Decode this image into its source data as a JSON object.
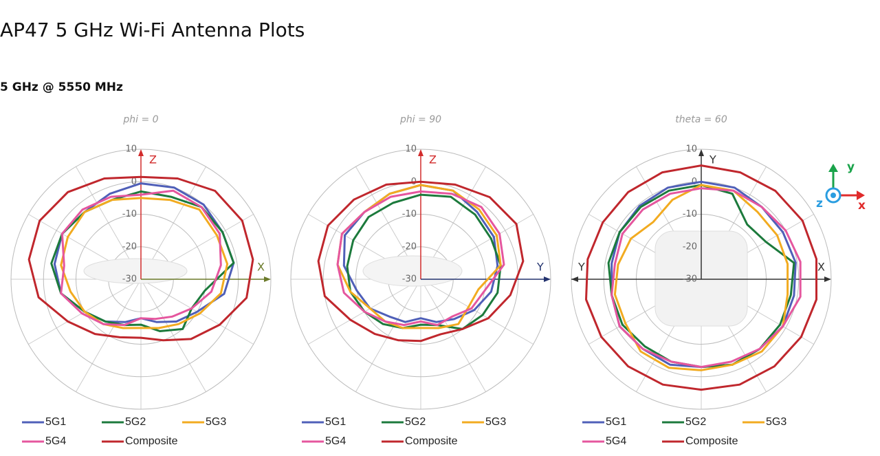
{
  "header": {
    "title": "AP47 5 GHz Wi-Fi Antenna Plots",
    "subtitle": "5 GHz @ 5550 MHz"
  },
  "orientation_icon": {
    "labels": [
      "y",
      "z",
      "x"
    ]
  },
  "chart_data": [
    {
      "type": "polar",
      "title": "phi = 0",
      "theta": [
        0,
        20,
        40,
        60,
        80,
        100,
        120,
        140,
        160,
        180,
        200,
        220,
        240,
        260,
        280,
        300,
        320,
        340
      ],
      "rlim": [
        -30,
        10
      ],
      "rticks": [
        10,
        0,
        -10,
        -20,
        -30
      ],
      "up_axis": {
        "label": "Z",
        "color": "#d22b2b"
      },
      "right_axis": {
        "label": "X",
        "color": "#6b7a2a"
      },
      "series": [
        {
          "name": "5G1",
          "color": "#4f5fb8",
          "values": [
            -0.5,
            0,
            0,
            -1,
            -1,
            -4,
            -10,
            -13,
            -16,
            -18,
            -16,
            -13,
            -10,
            -5,
            -3,
            -2,
            -3,
            -2
          ]
        },
        {
          "name": "5G2",
          "color": "#1c7a3c",
          "values": [
            -3,
            -3,
            -1,
            -1,
            -1,
            -10,
            -12,
            -10,
            -13,
            -16,
            -15,
            -13,
            -10,
            -5,
            -2,
            -2,
            -3,
            -4
          ]
        },
        {
          "name": "5G3",
          "color": "#f2ab20",
          "values": [
            -5,
            -4,
            -2,
            -3,
            -3,
            -5,
            -9,
            -12,
            -14,
            -15,
            -14,
            -12,
            -10,
            -8,
            -5,
            -4,
            -3,
            -4
          ]
        },
        {
          "name": "5G4",
          "color": "#e5569e",
          "values": [
            -4,
            -1,
            -1,
            -2,
            -5,
            -8,
            -12,
            -15,
            -17,
            -18,
            -15,
            -12,
            -9,
            -5,
            -6,
            -2,
            -2,
            -3
          ]
        },
        {
          "name": "Composite",
          "color": "#c0272d",
          "values": [
            1.5,
            3,
            5.5,
            6,
            5,
            3,
            -2,
            -6,
            -10,
            -12,
            -11,
            -8,
            -4,
            2,
            5,
            6,
            5,
            3
          ]
        }
      ]
    },
    {
      "type": "polar",
      "title": "phi = 90",
      "theta": [
        0,
        20,
        40,
        60,
        80,
        100,
        120,
        140,
        160,
        180,
        200,
        220,
        240,
        260,
        280,
        300,
        320,
        340
      ],
      "rlim": [
        -30,
        10
      ],
      "rticks": [
        10,
        0,
        -10,
        -20,
        -30
      ],
      "up_axis": {
        "label": "Z",
        "color": "#d22b2b"
      },
      "right_axis": {
        "label": "Y",
        "color": "#23336e"
      },
      "series": [
        {
          "name": "5G1",
          "color": "#4f5fb8",
          "values": [
            -1,
            -1,
            -3,
            -4,
            -6,
            -8,
            -11,
            -14,
            -16,
            -18,
            -16,
            -15,
            -12,
            -10,
            -6,
            -3,
            -3,
            -2
          ]
        },
        {
          "name": "5G2",
          "color": "#1c7a3c",
          "values": [
            -4,
            -3,
            -4,
            -5,
            -5,
            -6,
            -8,
            -10,
            -15,
            -16,
            -14,
            -12,
            -10,
            -8,
            -7,
            -6,
            -5,
            -5
          ]
        },
        {
          "name": "5G3",
          "color": "#f2ab20",
          "values": [
            -1,
            -1,
            -2,
            -3,
            -5,
            -12,
            -13,
            -12,
            -14,
            -15,
            -14,
            -13,
            -12,
            -8,
            -4,
            -2,
            -3,
            -2
          ]
        },
        {
          "name": "5G4",
          "color": "#e5569e",
          "values": [
            -3,
            -2,
            -1,
            -2,
            -4,
            -10,
            -12,
            -15,
            -15,
            -17,
            -15,
            -13,
            -10,
            -6,
            -4,
            -2,
            -3,
            -3
          ]
        },
        {
          "name": "Composite",
          "color": "#c0272d",
          "values": [
            0,
            1,
            3,
            4,
            2,
            -2,
            -6,
            -10,
            -12,
            -11,
            -10,
            -8,
            -5,
            0,
            2,
            3,
            2,
            1
          ]
        }
      ]
    },
    {
      "type": "polar",
      "title": "theta = 60",
      "theta": [
        0,
        20,
        40,
        60,
        80,
        100,
        120,
        140,
        160,
        180,
        200,
        220,
        240,
        260,
        280,
        300,
        320,
        340
      ],
      "rlim": [
        -30,
        10
      ],
      "rticks": [
        10,
        0,
        -10,
        -20,
        -30
      ],
      "up_axis": {
        "label": "Y",
        "color": "#333333"
      },
      "right_axis": {
        "label": "X",
        "color": "#333333"
      },
      "left_axis": {
        "label": "Y",
        "color": "#333333"
      },
      "series": [
        {
          "name": "5G1",
          "color": "#4f5fb8",
          "values": [
            0,
            0,
            -1,
            -1,
            -0.5,
            -1,
            -1,
            -2,
            -2,
            -3,
            -2,
            -2,
            -1,
            -2,
            -2,
            -1,
            -0.5,
            0
          ]
        },
        {
          "name": "5G2",
          "color": "#1c7a3c",
          "values": [
            -1,
            -2,
            -8,
            -7,
            -1,
            -2,
            -2,
            -2,
            -2,
            -3,
            -3,
            -3,
            -2,
            -2,
            -1,
            -1,
            -1,
            -1
          ]
        },
        {
          "name": "5G3",
          "color": "#f2ab20",
          "values": [
            -1,
            -1,
            -3,
            -3,
            -3,
            -3,
            -1,
            -1,
            -2,
            -2,
            -1,
            -1,
            -3,
            -3,
            -4,
            -5,
            -7,
            -4
          ]
        },
        {
          "name": "5G4",
          "color": "#e5569e",
          "values": [
            -2,
            -1,
            -1,
            0,
            1,
            1,
            -1,
            -2,
            -3,
            -3,
            -3,
            -2,
            -1,
            -2,
            -3,
            -2,
            -2,
            -2
          ]
        },
        {
          "name": "Composite",
          "color": "#c0272d",
          "values": [
            5,
            5,
            5.5,
            6,
            6,
            6,
            5.5,
            5,
            4.5,
            4,
            4.5,
            5,
            5.5,
            6,
            5.5,
            5,
            5,
            5
          ]
        }
      ]
    }
  ]
}
